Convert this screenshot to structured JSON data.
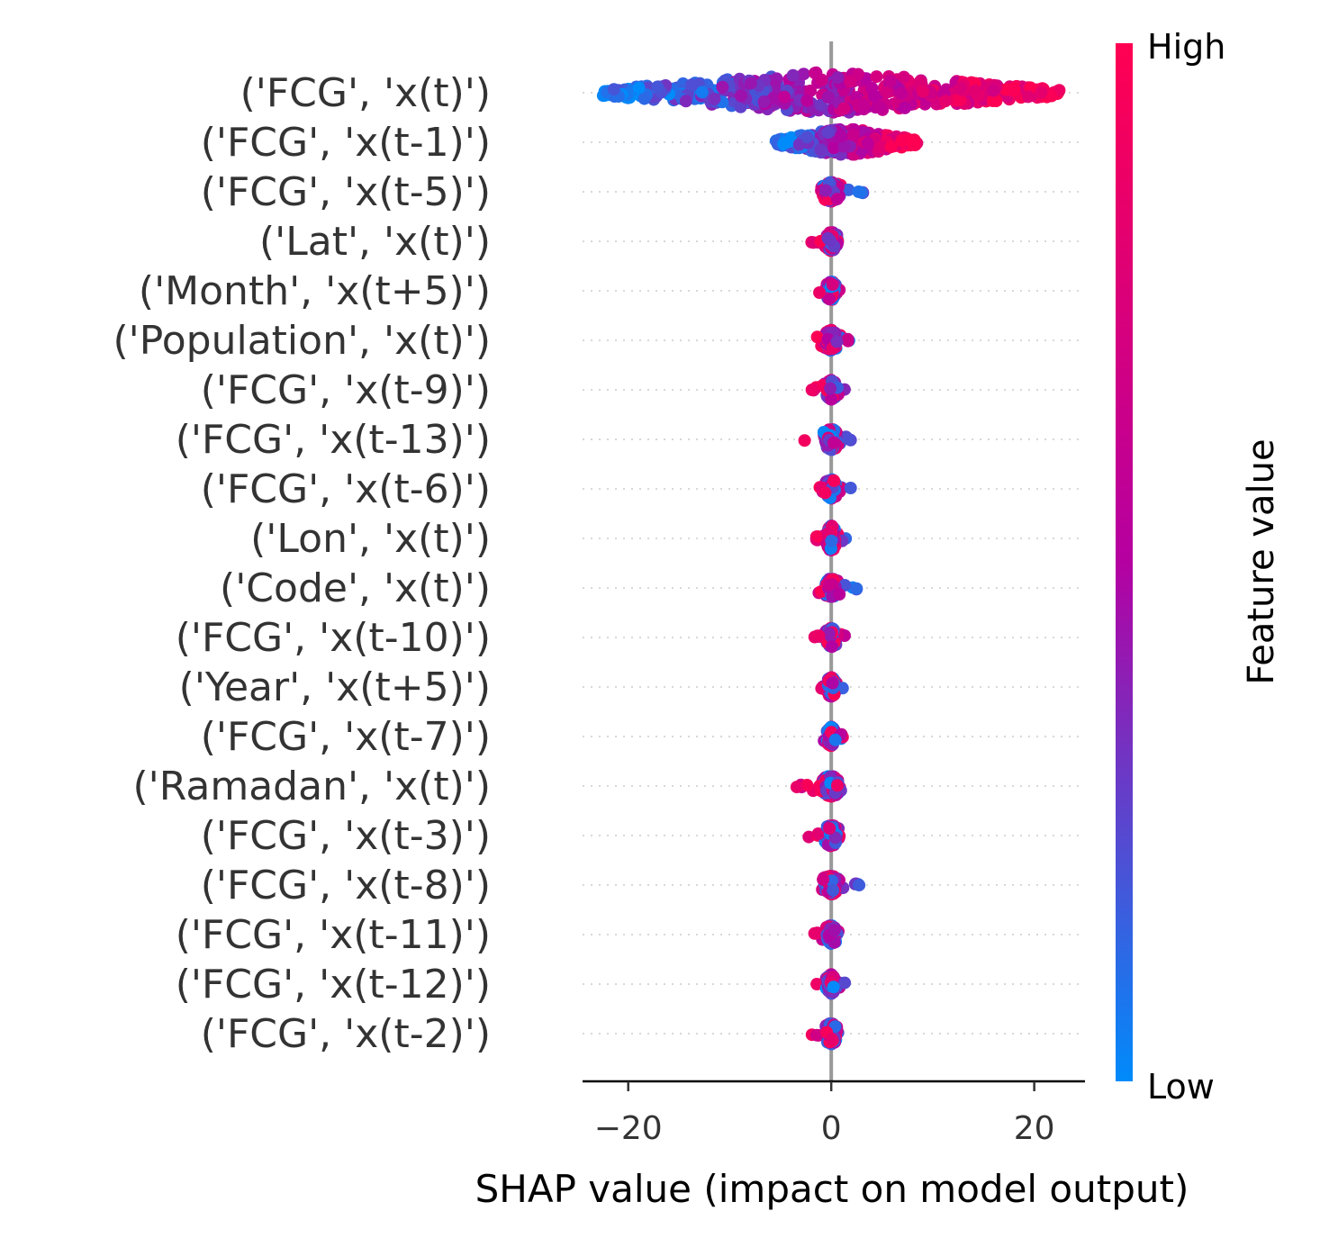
{
  "chart_data": {
    "type": "scatter",
    "subtype": "shap-beeswarm",
    "xlabel": "SHAP value (impact on model output)",
    "x_ticks": [
      -20,
      0,
      20
    ],
    "xlim": [
      -24.5,
      25
    ],
    "colorbar": {
      "title": "Feature value",
      "high_label": "High",
      "low_label": "Low",
      "low_color": "#008bfb",
      "mid_color": "#b500a1",
      "high_color": "#ff0052"
    },
    "features": [
      {
        "name": "('FCG', 'x(t)')",
        "min": -22.5,
        "max": 22.5,
        "spread": 1.0
      },
      {
        "name": "('FCG', 'x(t-1)')",
        "min": -5.5,
        "max": 8.5,
        "spread": 0.7
      },
      {
        "name": "('FCG', 'x(t-5)')",
        "min": -1.0,
        "max": 3.5,
        "spread": 0.45
      },
      {
        "name": "('Lat', 'x(t)')",
        "min": -2.0,
        "max": 1.2,
        "spread": 0.45
      },
      {
        "name": "('Month', 'x(t+5)')",
        "min": -1.5,
        "max": 1.5,
        "spread": 0.45
      },
      {
        "name": "('Population', 'x(t)')",
        "min": -1.5,
        "max": 2.0,
        "spread": 0.5
      },
      {
        "name": "('FCG', 'x(t-9)')",
        "min": -2.0,
        "max": 1.5,
        "spread": 0.45
      },
      {
        "name": "('FCG', 'x(t-13)')",
        "min": -2.8,
        "max": 2.2,
        "spread": 0.5
      },
      {
        "name": "('FCG', 'x(t-6)')",
        "min": -1.5,
        "max": 2.0,
        "spread": 0.45
      },
      {
        "name": "('Lon', 'x(t)')",
        "min": -1.5,
        "max": 1.5,
        "spread": 0.6
      },
      {
        "name": "('Code', 'x(t)')",
        "min": -1.5,
        "max": 2.5,
        "spread": 0.45
      },
      {
        "name": "('FCG', 'x(t-10)')",
        "min": -1.8,
        "max": 1.5,
        "spread": 0.45
      },
      {
        "name": "('Year', 'x(t+5)')",
        "min": -1.0,
        "max": 1.5,
        "spread": 0.45
      },
      {
        "name": "('FCG', 'x(t-7)')",
        "min": -1.5,
        "max": 1.2,
        "spread": 0.45
      },
      {
        "name": "('Ramadan', 'x(t)')",
        "min": -3.5,
        "max": 1.2,
        "spread": 0.5
      },
      {
        "name": "('FCG', 'x(t-3)')",
        "min": -2.5,
        "max": 1.5,
        "spread": 0.5
      },
      {
        "name": "('FCG', 'x(t-8)')",
        "min": -1.0,
        "max": 2.8,
        "spread": 0.45
      },
      {
        "name": "('FCG', 'x(t-11)')",
        "min": -1.8,
        "max": 1.0,
        "spread": 0.45
      },
      {
        "name": "('FCG', 'x(t-12)')",
        "min": -1.5,
        "max": 1.5,
        "spread": 0.45
      },
      {
        "name": "('FCG', 'x(t-2)')",
        "min": -2.0,
        "max": 1.0,
        "spread": 0.5
      }
    ]
  }
}
